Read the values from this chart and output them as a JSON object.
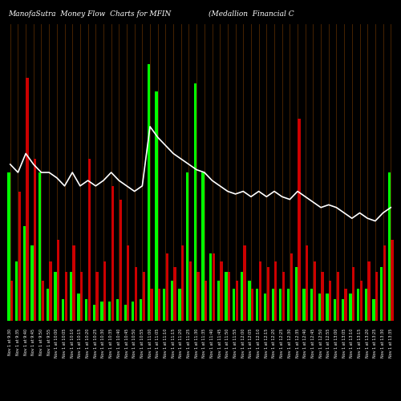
{
  "title_left": "ManofaSutra  Money Flow  Charts for MFIN",
  "title_right": "(Medallion  Financial C",
  "background_color": "#000000",
  "categories": [
    "Nov 1 at 9:30",
    "Nov 1 at 9:35",
    "Nov 1 at 9:40",
    "Nov 1 at 9:45",
    "Nov 1 at 9:50",
    "Nov 1 at 9:55",
    "Nov 1 at 10:00",
    "Nov 1 at 10:05",
    "Nov 1 at 10:10",
    "Nov 1 at 10:15",
    "Nov 1 at 10:20",
    "Nov 1 at 10:25",
    "Nov 1 at 10:30",
    "Nov 1 at 10:35",
    "Nov 1 at 10:40",
    "Nov 1 at 10:45",
    "Nov 1 at 10:50",
    "Nov 1 at 10:55",
    "Nov 1 at 11:00",
    "Nov 1 at 11:05",
    "Nov 1 at 11:10",
    "Nov 1 at 11:15",
    "Nov 1 at 11:20",
    "Nov 1 at 11:25",
    "Nov 1 at 11:30",
    "Nov 1 at 11:35",
    "Nov 1 at 11:40",
    "Nov 1 at 11:45",
    "Nov 1 at 11:50",
    "Nov 1 at 11:55",
    "Nov 1 at 12:00",
    "Nov 1 at 12:05",
    "Nov 1 at 12:10",
    "Nov 1 at 12:15",
    "Nov 1 at 12:20",
    "Nov 1 at 12:25",
    "Nov 1 at 12:30",
    "Nov 1 at 12:35",
    "Nov 1 at 12:40",
    "Nov 1 at 12:45",
    "Nov 1 at 12:50",
    "Nov 1 at 12:55",
    "Nov 1 at 13:00",
    "Nov 1 at 13:05",
    "Nov 1 at 13:10",
    "Nov 1 at 13:15",
    "Nov 1 at 13:20",
    "Nov 1 at 13:25",
    "Nov 1 at 13:30",
    "Nov 1 at 13:35"
  ],
  "green_bars": [
    55,
    22,
    35,
    28,
    55,
    12,
    18,
    8,
    18,
    10,
    8,
    6,
    7,
    7,
    8,
    6,
    7,
    8,
    95,
    85,
    12,
    15,
    12,
    55,
    88,
    55,
    25,
    15,
    18,
    12,
    18,
    15,
    12,
    10,
    12,
    12,
    12,
    20,
    12,
    12,
    10,
    10,
    8,
    8,
    10,
    12,
    12,
    8,
    20,
    55
  ],
  "red_bars": [
    15,
    48,
    90,
    60,
    15,
    22,
    30,
    18,
    28,
    18,
    60,
    18,
    22,
    50,
    45,
    28,
    20,
    18,
    12,
    12,
    25,
    20,
    28,
    22,
    18,
    15,
    25,
    22,
    18,
    15,
    28,
    12,
    22,
    20,
    22,
    18,
    25,
    75,
    28,
    22,
    18,
    15,
    18,
    12,
    20,
    15,
    22,
    18,
    28,
    30
  ],
  "line_values": [
    58,
    55,
    62,
    58,
    55,
    55,
    53,
    50,
    55,
    50,
    52,
    50,
    52,
    55,
    52,
    50,
    48,
    50,
    72,
    68,
    65,
    62,
    60,
    58,
    56,
    55,
    52,
    50,
    48,
    47,
    48,
    46,
    48,
    46,
    48,
    46,
    45,
    48,
    46,
    44,
    42,
    43,
    42,
    40,
    38,
    40,
    38,
    37,
    40,
    42
  ],
  "green_color": "#00ff00",
  "red_color": "#cc0000",
  "line_color": "#ffffff",
  "text_color": "#ffffff",
  "grid_color": "#8B4500",
  "title_fontsize": 6.5,
  "tick_fontsize": 3.5
}
